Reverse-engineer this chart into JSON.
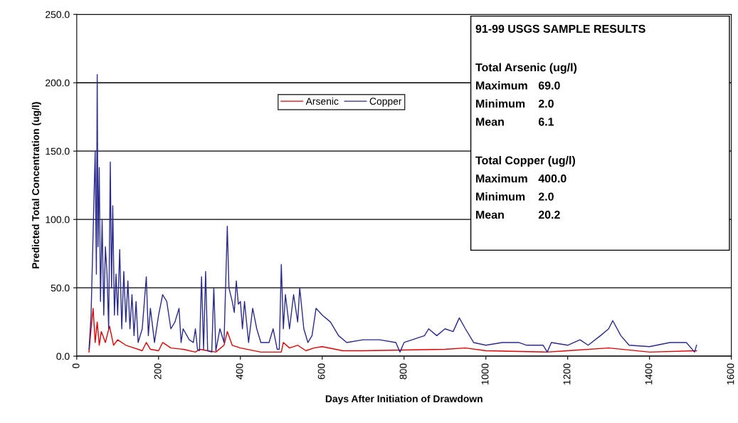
{
  "chart_data": {
    "type": "line",
    "xlabel": "Days After Initiation of Drawdown",
    "ylabel": "Predicted Total Concentration (ug/l)",
    "xlim": [
      0,
      1600
    ],
    "xticks": [
      0,
      200,
      400,
      600,
      800,
      1000,
      1200,
      1400,
      1600
    ],
    "ylim": [
      0,
      250
    ],
    "yticks": [
      {
        "value": 0,
        "label": "0.0"
      },
      {
        "value": 50,
        "label": "50.0"
      },
      {
        "value": 100,
        "label": "100.0"
      },
      {
        "value": 150,
        "label": "150.0"
      },
      {
        "value": 200,
        "label": "200.0"
      },
      {
        "value": 250,
        "label": "250.0"
      }
    ],
    "grid": "y",
    "legend": "top center",
    "marker": "none",
    "line_style": "solid",
    "annotations": [
      "91-99 USGS SAMPLE RESULTS",
      "Total Arsenic (ug/l)",
      "Maximum 69.0",
      "Minimum 2.0",
      "Mean 6.1",
      "Total Copper (ug/l)",
      "Maximum 400.0",
      "Minimum 2.0",
      "Mean 20.2"
    ],
    "series": [
      {
        "name": "Arsenic",
        "color": "#e00000",
        "x": [
          30,
          35,
          40,
          45,
          50,
          55,
          60,
          70,
          80,
          90,
          100,
          120,
          140,
          160,
          170,
          180,
          200,
          210,
          230,
          260,
          290,
          300,
          320,
          340,
          360,
          368,
          380,
          400,
          450,
          500,
          505,
          520,
          540,
          560,
          580,
          600,
          650,
          700,
          900,
          950,
          1000,
          1150,
          1200,
          1300,
          1400,
          1515
        ],
        "values": [
          3,
          20,
          35,
          10,
          25,
          8,
          18,
          10,
          22,
          8,
          12,
          8,
          6,
          4,
          10,
          5,
          4,
          10,
          6,
          5,
          3,
          5,
          4,
          3,
          8,
          18,
          8,
          6,
          3,
          3,
          10,
          6,
          8,
          4,
          6,
          7,
          4,
          4,
          5,
          6,
          4,
          3,
          4,
          6,
          3,
          4
        ]
      },
      {
        "name": "Copper",
        "color": "#2a2a8c",
        "x": [
          30,
          35,
          40,
          45,
          48,
          50,
          52,
          55,
          58,
          62,
          66,
          70,
          74,
          78,
          82,
          85,
          88,
          92,
          96,
          100,
          105,
          110,
          115,
          120,
          125,
          130,
          135,
          140,
          145,
          150,
          160,
          170,
          175,
          180,
          190,
          200,
          210,
          220,
          230,
          240,
          250,
          255,
          260,
          275,
          285,
          290,
          295,
          300,
          305,
          310,
          315,
          320,
          330,
          335,
          340,
          350,
          360,
          368,
          372,
          380,
          385,
          390,
          395,
          400,
          405,
          410,
          420,
          430,
          440,
          450,
          470,
          480,
          490,
          495,
          500,
          505,
          510,
          520,
          530,
          540,
          545,
          555,
          565,
          575,
          585,
          600,
          620,
          640,
          660,
          700,
          740,
          780,
          790,
          800,
          850,
          860,
          880,
          900,
          920,
          935,
          950,
          970,
          1000,
          1040,
          1080,
          1100,
          1140,
          1150,
          1160,
          1200,
          1230,
          1250,
          1280,
          1300,
          1310,
          1330,
          1350,
          1400,
          1450,
          1490,
          1510,
          1515
        ],
        "values": [
          5,
          30,
          90,
          150,
          60,
          206,
          80,
          138,
          40,
          100,
          30,
          80,
          60,
          20,
          142,
          50,
          110,
          30,
          60,
          30,
          78,
          20,
          62,
          25,
          55,
          20,
          45,
          15,
          40,
          10,
          20,
          58,
          15,
          35,
          10,
          30,
          45,
          40,
          20,
          25,
          35,
          10,
          20,
          12,
          10,
          20,
          5,
          4,
          58,
          5,
          62,
          4,
          3,
          50,
          4,
          20,
          10,
          95,
          50,
          40,
          32,
          55,
          38,
          40,
          20,
          40,
          10,
          35,
          20,
          10,
          10,
          20,
          5,
          5,
          67,
          20,
          45,
          20,
          45,
          25,
          50,
          20,
          10,
          15,
          35,
          30,
          25,
          15,
          10,
          12,
          12,
          10,
          3,
          10,
          15,
          20,
          15,
          20,
          18,
          28,
          20,
          10,
          8,
          10,
          10,
          8,
          8,
          3,
          10,
          8,
          12,
          8,
          15,
          20,
          26,
          15,
          8,
          7,
          10,
          10,
          3,
          8
        ]
      }
    ]
  }
}
